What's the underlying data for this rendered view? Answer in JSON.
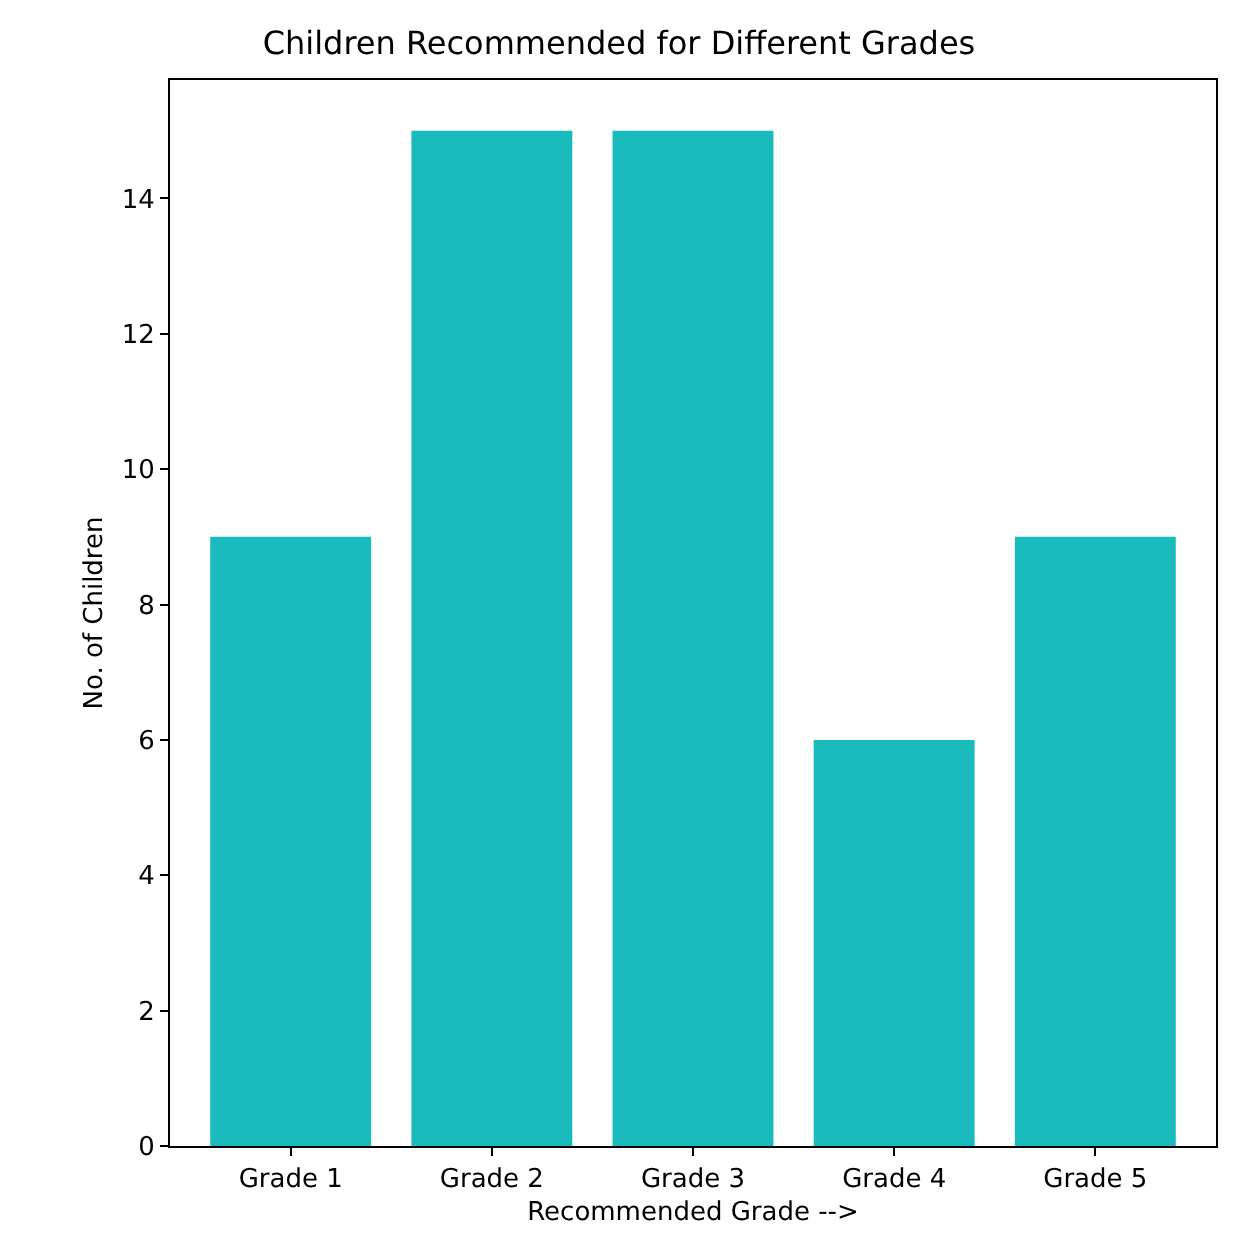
{
  "chart_data": {
    "type": "bar",
    "title": "Children Recommended for Different Grades",
    "xlabel": "Recommended Grade -->",
    "ylabel": "No. of Children",
    "categories": [
      "Grade 1",
      "Grade 2",
      "Grade 3",
      "Grade 4",
      "Grade 5"
    ],
    "values": [
      9,
      15,
      15,
      6,
      9
    ],
    "color": "#1abbbc",
    "ylim": [
      0,
      15.75
    ],
    "yticks": [
      0,
      2,
      4,
      6,
      8,
      10,
      12,
      14
    ]
  }
}
